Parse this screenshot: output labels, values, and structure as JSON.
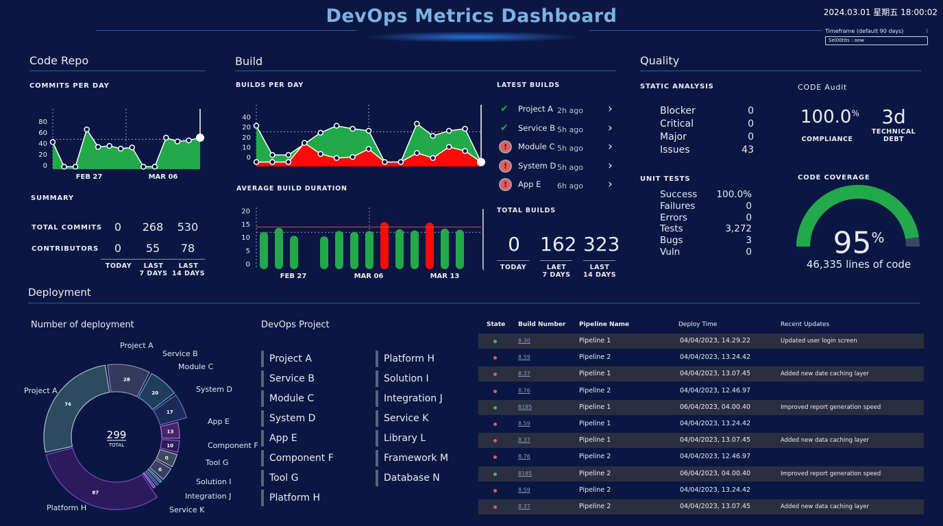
{
  "header": {
    "title": "DevOps Metrics Dashboard",
    "datetime": "2024.03.01 星期五 18:00:02",
    "timeframe_label": "Timeframe (default 90 days)",
    "timeframe_value": "Sel00tits : oow",
    "timeframe_menu_icon": "kebab-icon"
  },
  "colors": {
    "background": "#0b1742",
    "success": "#22a94a",
    "failure": "#ff0a0a",
    "title": "#7fb2de"
  },
  "code_repo": {
    "title": "Code Repo",
    "commits_title": "COMMITS PER DAY",
    "summary_title": "SUMMARY",
    "summary_rows": [
      {
        "label": "TOTAL COMMITS",
        "values": [
          "0",
          "268",
          "530"
        ]
      },
      {
        "label": "CONTRIBUTORS",
        "values": [
          "0",
          "55",
          "78"
        ]
      }
    ],
    "summary_cols": [
      "TODAY",
      "LAST\n7 DAYS",
      "LAST\n14 DAYS"
    ]
  },
  "build": {
    "title": "Build",
    "builds_title": "BUILDS PER DAY",
    "duration_title": "AVERAGE BUILD DURATION",
    "latest_title": "LATEST BUILDS",
    "total_title": "TOTAL BUILDS",
    "latest": [
      {
        "name": "Project A",
        "time": "2h ago",
        "status": "success"
      },
      {
        "name": "Service B",
        "time": "5h ago",
        "status": "success"
      },
      {
        "name": "Module C",
        "time": "5h ago",
        "status": "failed"
      },
      {
        "name": "System D",
        "time": "5h ago",
        "status": "failed"
      },
      {
        "name": "App E",
        "time": "6h ago",
        "status": "failed"
      }
    ],
    "totals": [
      {
        "value": "0",
        "label": "TODAY"
      },
      {
        "value": "162",
        "label": "LAET\n7 DAYS"
      },
      {
        "value": "323",
        "label": "LAST\n14 DAYS"
      }
    ]
  },
  "quality": {
    "title": "Quality",
    "static_title": "STATIC ANALYSIS",
    "static": [
      {
        "label": "Blocker",
        "value": "0"
      },
      {
        "label": "Critical",
        "value": "0"
      },
      {
        "label": "Major",
        "value": "0"
      },
      {
        "label": "Issues",
        "value": "43"
      }
    ],
    "audit_title": "CODE  Audit",
    "compliance_value": "100.0",
    "compliance_unit": "%",
    "compliance_label": "COMPLIANCE",
    "debt_value": "3d",
    "debt_label": "TECHNICAL\nDEBT",
    "unit_title": "UNIT TESTS",
    "unit": [
      {
        "label": "Success",
        "value": "100.0%"
      },
      {
        "label": "Failures",
        "value": "0"
      },
      {
        "label": "Errors",
        "value": "0"
      },
      {
        "label": "Tests",
        "value": "3,272"
      },
      {
        "label": "Bugs",
        "value": "3"
      },
      {
        "label": "Vuln",
        "value": "0"
      }
    ],
    "coverage_title": "CODE COVERAGE",
    "coverage_value": "95",
    "coverage_unit": "%",
    "coverage_lines": "46,335 lines of code",
    "coverage_percent": 95
  },
  "deployment": {
    "title": "Deployment",
    "donut_title": "Number of deployment",
    "project_title": "DevOps Project",
    "projects_col1": [
      "Project A",
      "Service B",
      "Module C",
      "System D",
      "App E",
      "Component F",
      "Tool G",
      "Platform H"
    ],
    "projects_col2": [
      "Platform H",
      "Solution I",
      "Integration J",
      "Service K",
      "Library L",
      "Framework M",
      "Database N"
    ],
    "table_headers": [
      "State",
      "Build Number",
      "Pipeline Name",
      "Deploy Time",
      "Recent Updates"
    ],
    "table_rows": [
      {
        "state": "success",
        "build": "8.30",
        "pipeline": "Pipeline 1",
        "time": "04/04/2023, 14.29.22",
        "update": "Updated user login screen"
      },
      {
        "state": "failed",
        "build": "8.59",
        "pipeline": "Pipeline 2",
        "time": "04/04/2023, 13.24.42",
        "update": ""
      },
      {
        "state": "failed",
        "build": "8.37",
        "pipeline": "Pipeline 1",
        "time": "04/04/2023, 13.07.45",
        "update": "Added new date caching layer"
      },
      {
        "state": "failed",
        "build": "8.76",
        "pipeline": "Pipeline 2",
        "time": "04/04/2023, 12.46.97",
        "update": ""
      },
      {
        "state": "success",
        "build": "8185",
        "pipeline": "Pipeline 1",
        "time": "06/04/2023, 04.00.40",
        "update": "Improved report generation speed"
      },
      {
        "state": "failed",
        "build": "8.59",
        "pipeline": "Pipeline 1",
        "time": "04/04/2023, 13.24.42",
        "update": ""
      },
      {
        "state": "failed",
        "build": "8.37",
        "pipeline": "Pipeline 1",
        "time": "04/04/2023, 13.07.45",
        "update": "Added new data caching layer"
      },
      {
        "state": "failed",
        "build": "8.76",
        "pipeline": "Pipeline 2",
        "time": "04/04/2023, 12.46.97",
        "update": ""
      },
      {
        "state": "success",
        "build": "8185",
        "pipeline": "Pipeline 2",
        "time": "06/04/2023, 04.00.40",
        "update": "Improved report generation speed"
      },
      {
        "state": "failed",
        "build": "8.59",
        "pipeline": "Pipeline 2",
        "time": "04/04/2023, 13.24.42",
        "update": ""
      },
      {
        "state": "failed",
        "build": "8.37",
        "pipeline": "Pipeline 2",
        "time": "04/04/2023, 13.07.45",
        "update": "Added new data caching layer"
      }
    ]
  },
  "chart_data": [
    {
      "id": "commits",
      "type": "area",
      "title": "COMMITS PER DAY",
      "ylim": [
        -5,
        90
      ],
      "yticks": [
        "80",
        "60",
        "40",
        "20",
        "0"
      ],
      "ytick_values": [
        80,
        60,
        40,
        20,
        0
      ],
      "xticks": [
        "FEB 27",
        "MAR 06"
      ],
      "reference_line": 47,
      "values": [
        42,
        -3,
        -3,
        65,
        33,
        35,
        30,
        32,
        -3,
        -3,
        50,
        43,
        45,
        50
      ]
    },
    {
      "id": "builds",
      "type": "area",
      "title": "BUILDS PER DAY",
      "ylim": [
        -8,
        45
      ],
      "yticks": [
        "40",
        "20",
        "20",
        "10",
        "0"
      ],
      "ytick_values": [
        40,
        30,
        20,
        10,
        0
      ],
      "reference_line": 25,
      "series": [
        {
          "values": [
            31,
            2,
            2,
            13,
            24,
            31,
            28,
            26,
            -5,
            -5,
            33,
            21,
            26,
            28,
            -5
          ],
          "color": "#22a94a"
        },
        {
          "values": [
            -5,
            -5,
            -5,
            14,
            3,
            -1,
            0,
            8,
            -5,
            -5,
            4,
            -1,
            10,
            6,
            -5
          ],
          "color": "#ff0a0a"
        }
      ]
    },
    {
      "id": "duration",
      "type": "bar",
      "title": "AVERAGE BUILD DURATION",
      "ylim": [
        0,
        22
      ],
      "yticks": [
        "20",
        "15",
        "10",
        "5",
        "0"
      ],
      "ytick_values": [
        20,
        15,
        10,
        5,
        0
      ],
      "xticks": [
        "FEB 27",
        "MAR 06",
        "MAR 13"
      ],
      "threshold": 13.8,
      "average": 11.8,
      "values": [
        12,
        13.5,
        10.5,
        null,
        10.3,
        12.3,
        12,
        12.3,
        15.7,
        13,
        12.5,
        15.5,
        13.2,
        12.8
      ],
      "failed": [
        false,
        false,
        false,
        false,
        false,
        false,
        false,
        false,
        true,
        false,
        false,
        true,
        false,
        false
      ]
    },
    {
      "id": "deployments",
      "type": "pie",
      "title": "Number of deployment",
      "total": "299",
      "total_label": "TOTAL",
      "slices": [
        {
          "value": 28,
          "label": "28"
        },
        {
          "value": 20,
          "label": "20"
        },
        {
          "value": 17,
          "label": "17"
        },
        {
          "value": 13,
          "label": "13"
        },
        {
          "value": 10,
          "label": "10"
        },
        {
          "value": 0,
          "label": "0"
        },
        {
          "value": 0,
          "label": "0"
        },
        {
          "value": 0,
          "label": ""
        },
        {
          "value": 0,
          "label": ""
        },
        {
          "value": 0,
          "label": ""
        },
        {
          "value": 87,
          "label": "87"
        },
        {
          "value": 74,
          "label": "74"
        }
      ],
      "labels": [
        "Project A",
        "Service B",
        "Module C",
        "System D",
        "App E",
        "Component F",
        "Tool G",
        "Solution I",
        "Integration J",
        "Service K",
        "Platform H",
        "Project A"
      ]
    }
  ]
}
